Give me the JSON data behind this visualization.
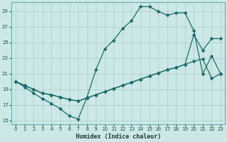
{
  "xlabel": "Humidex (Indice chaleur)",
  "xlim": [
    -0.5,
    23.5
  ],
  "ylim": [
    14.5,
    30.2
  ],
  "xticks": [
    0,
    1,
    2,
    3,
    4,
    5,
    6,
    7,
    8,
    9,
    10,
    11,
    12,
    13,
    14,
    15,
    16,
    17,
    18,
    19,
    20,
    21,
    22,
    23
  ],
  "yticks": [
    15,
    17,
    19,
    21,
    23,
    25,
    27,
    29
  ],
  "bg_color": "#cce8e6",
  "grid_color": "#aaccca",
  "line_color": "#1a6b6b",
  "line1_x": [
    0,
    1,
    2,
    3,
    4,
    5,
    6,
    7,
    8,
    9,
    10,
    11,
    12,
    13,
    14,
    15,
    16,
    17,
    18,
    19,
    20,
    21,
    22,
    23
  ],
  "line1_y": [
    20.0,
    19.3,
    18.5,
    17.8,
    17.2,
    16.5,
    15.6,
    15.2,
    18.0,
    21.5,
    24.2,
    25.3,
    26.8,
    27.8,
    29.6,
    29.6,
    29.0,
    28.5,
    28.8,
    28.8,
    26.5,
    21.0,
    23.3,
    21.0
  ],
  "line2_x": [
    0,
    1,
    2,
    3,
    4,
    5,
    6,
    7,
    8,
    9,
    10,
    11,
    12,
    13,
    14,
    15,
    16,
    17,
    18,
    19,
    20,
    21,
    22,
    23
  ],
  "line2_y": [
    20.0,
    19.5,
    19.0,
    18.5,
    18.3,
    18.0,
    17.7,
    17.5,
    17.9,
    18.3,
    18.7,
    19.1,
    19.5,
    19.9,
    20.3,
    20.7,
    21.1,
    21.5,
    21.8,
    22.2,
    22.6,
    22.9,
    20.4,
    21.0
  ],
  "line3_x": [
    0,
    1,
    2,
    3,
    4,
    5,
    6,
    7,
    8,
    9,
    10,
    11,
    12,
    13,
    14,
    15,
    16,
    17,
    18,
    19,
    20,
    21,
    22,
    23
  ],
  "line3_y": [
    20.0,
    19.5,
    19.0,
    18.5,
    18.3,
    18.0,
    17.7,
    17.5,
    17.9,
    18.3,
    18.7,
    19.1,
    19.5,
    19.9,
    20.3,
    20.7,
    21.1,
    21.5,
    21.8,
    22.2,
    26.0,
    24.0,
    25.5,
    25.5
  ]
}
